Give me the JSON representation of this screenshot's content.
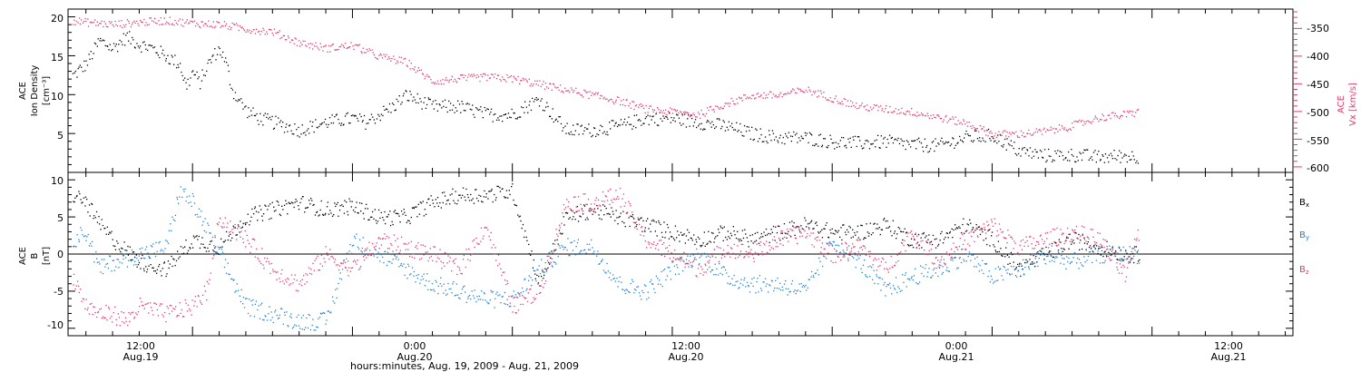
{
  "colors": {
    "black": "#000000",
    "pink": "#e8386b",
    "blue": "#1f7fd8"
  },
  "chart_data": [
    {
      "type": "scatter",
      "panel": "top",
      "ylabel_left": [
        "ACE",
        "Ion Density",
        "[cm⁻³]"
      ],
      "ylabel_right": [
        "ACE",
        "Vx [km/s]"
      ],
      "ylim_left": [
        0,
        21
      ],
      "ylim_right": [
        -610,
        -315
      ],
      "yticks_left": [
        "20",
        "15",
        "10",
        "5"
      ],
      "yticks_right": [
        "-350",
        "-400",
        "-450",
        "-500",
        "-550",
        "-600"
      ],
      "series": [
        {
          "color": "black",
          "axis": "left",
          "t": [
            3,
            4,
            5,
            6,
            7,
            8,
            9,
            10,
            11,
            11.5,
            12,
            12.5,
            13,
            13.5,
            14,
            14.5,
            15,
            16,
            17,
            18,
            20,
            22,
            24,
            25,
            26,
            27,
            28,
            30,
            32,
            34,
            36,
            38,
            40,
            42,
            44,
            46,
            48,
            50,
            52,
            54,
            56,
            58,
            60,
            62,
            64,
            66,
            68,
            70,
            72,
            74,
            76,
            78,
            80,
            82,
            83
          ],
          "y": [
            12.5,
            14,
            17,
            16,
            17.5,
            16.5,
            16,
            15,
            14,
            11,
            13,
            11.5,
            13.5,
            15,
            16,
            14,
            10.5,
            8,
            7,
            6.5,
            5.5,
            6.5,
            7,
            6.5,
            7.5,
            8.5,
            10,
            8.5,
            8.5,
            7.5,
            7.5,
            9.5,
            5.5,
            5.5,
            6,
            7,
            7,
            6.5,
            6,
            5,
            4.5,
            4.5,
            4,
            3.8,
            4,
            3.6,
            3.5,
            4.5,
            4.8,
            2.8,
            2.2,
            2.3,
            2,
            2.2,
            2
          ],
          "values": [
            12.5,
            14,
            17,
            16,
            17.5,
            16.5,
            16,
            15,
            14,
            11,
            13,
            11.5,
            13.5,
            15,
            16,
            14,
            10.5,
            8,
            7,
            6.5,
            5.5,
            6.5,
            7,
            6.5,
            7.5,
            8.5,
            10,
            8.5,
            8.5,
            7.5,
            7.5,
            9.5,
            5.5,
            5.5,
            6,
            7,
            7,
            6.5,
            6,
            5,
            4.5,
            4.5,
            4,
            3.8,
            4,
            3.6,
            3.5,
            4.5,
            4.8,
            2.8,
            2.2,
            2.3,
            2,
            2.2,
            2
          ]
        },
        {
          "color": "pink",
          "axis": "right",
          "t": [
            3,
            4,
            5,
            6,
            8,
            10,
            12,
            14,
            16,
            18,
            20,
            22,
            24,
            26,
            28,
            30,
            32,
            34,
            36,
            38,
            40,
            42,
            44,
            46,
            48,
            50,
            52,
            54,
            56,
            58,
            60,
            62,
            64,
            66,
            68,
            70,
            72,
            74,
            76,
            78,
            80,
            82,
            83
          ],
          "y": [
            -335,
            -338,
            -340,
            -342,
            -338,
            -335,
            -340,
            -342,
            -350,
            -355,
            -375,
            -385,
            -380,
            -400,
            -410,
            -445,
            -440,
            -437,
            -440,
            -450,
            -460,
            -470,
            -480,
            -495,
            -500,
            -505,
            -485,
            -470,
            -470,
            -460,
            -475,
            -490,
            -495,
            -500,
            -510,
            -520,
            -540,
            -540,
            -535,
            -525,
            -510,
            -505,
            -500
          ],
          "values": [
            -335,
            -338,
            -340,
            -342,
            -338,
            -335,
            -340,
            -342,
            -350,
            -355,
            -375,
            -385,
            -380,
            -400,
            -410,
            -445,
            -440,
            -437,
            -440,
            -450,
            -460,
            -470,
            -480,
            -495,
            -500,
            -505,
            -485,
            -470,
            -470,
            -460,
            -475,
            -490,
            -495,
            -500,
            -510,
            -520,
            -540,
            -540,
            -535,
            -525,
            -510,
            -505,
            -500
          ]
        }
      ]
    },
    {
      "type": "scatter",
      "panel": "bottom",
      "ylabel": [
        "ACE",
        "B",
        "[nT]"
      ],
      "ylim": [
        -11,
        11
      ],
      "yticks": [
        "10",
        "5",
        "0",
        "-5",
        "-10"
      ],
      "legend": [
        "Bx",
        "By",
        "Bz"
      ],
      "series": [
        {
          "name": "Bx",
          "color": "black",
          "t": [
            3,
            4,
            5,
            6,
            8,
            10,
            12,
            14,
            16,
            18,
            20,
            22,
            24,
            26,
            28,
            30,
            32,
            34,
            36,
            38,
            40,
            42,
            44,
            46,
            48,
            50,
            52,
            54,
            56,
            58,
            60,
            62,
            64,
            66,
            68,
            70,
            72,
            74,
            76,
            78,
            80,
            82,
            83
          ],
          "y": [
            8,
            7,
            4,
            2,
            -1,
            -2,
            2,
            1,
            5,
            6,
            7,
            6,
            6.5,
            5,
            5,
            7,
            8,
            8,
            8.5,
            -4,
            5,
            6,
            5,
            4,
            3,
            2,
            3,
            2,
            3,
            4,
            3,
            3,
            4,
            2,
            2,
            4,
            2,
            -2,
            0,
            2,
            1,
            0,
            0
          ],
          "values": [
            8,
            7,
            4,
            2,
            -1,
            -2,
            2,
            1,
            5,
            6,
            7,
            6,
            6.5,
            5,
            5,
            7,
            8,
            8,
            8.5,
            -4,
            5,
            6,
            5,
            4,
            3,
            2,
            3,
            2,
            3,
            4,
            3,
            3,
            4,
            2,
            2,
            4,
            2,
            -2,
            0,
            2,
            1,
            0,
            0
          ]
        },
        {
          "name": "By",
          "color": "blue",
          "t": [
            3,
            4,
            5,
            6,
            8,
            10,
            11,
            12,
            14,
            16,
            18,
            20,
            22,
            24,
            26,
            28,
            30,
            32,
            34,
            36,
            38,
            40,
            42,
            44,
            46,
            48,
            50,
            52,
            54,
            56,
            58,
            60,
            62,
            64,
            66,
            68,
            70,
            72,
            74,
            76,
            78,
            80,
            82,
            83
          ],
          "y": [
            2,
            3,
            -2,
            -1,
            0,
            1,
            8.5,
            7,
            0,
            -7,
            -8,
            -9,
            -9,
            2,
            0,
            -2,
            -4,
            -5,
            -6,
            -6,
            -2,
            1,
            1,
            -4,
            -5,
            -2,
            0,
            -3,
            -4,
            -4,
            -5,
            2,
            -1,
            -5,
            -3,
            -2,
            0,
            -3,
            -2,
            0,
            -1,
            0,
            0,
            0
          ],
          "values": [
            2,
            3,
            -2,
            -1,
            0,
            1,
            8.5,
            7,
            0,
            -7,
            -8,
            -9,
            -9,
            2,
            0,
            -2,
            -4,
            -5,
            -6,
            -6,
            -2,
            1,
            1,
            -4,
            -5,
            -2,
            0,
            -3,
            -4,
            -4,
            -5,
            2,
            -1,
            -5,
            -3,
            -2,
            0,
            -3,
            -2,
            0,
            -1,
            0,
            0,
            0
          ]
        },
        {
          "name": "Bz",
          "color": "pink",
          "t": [
            3,
            4,
            5,
            6,
            7,
            8,
            10,
            12,
            13,
            14,
            16,
            18,
            20,
            22,
            24,
            26,
            28,
            30,
            32,
            34,
            36,
            38,
            40,
            42,
            44,
            46,
            48,
            50,
            52,
            54,
            56,
            58,
            60,
            62,
            64,
            66,
            68,
            70,
            72,
            74,
            76,
            78,
            80,
            82,
            83
          ],
          "y": [
            -3,
            -7,
            -8,
            -8,
            -9,
            -7,
            -8,
            -7,
            -5,
            5,
            2,
            -2,
            -4,
            0,
            -2,
            2,
            1,
            0,
            -2,
            4,
            -7,
            -5,
            7,
            7,
            8,
            2,
            0,
            -2,
            1,
            0,
            2,
            3,
            0,
            1,
            -2,
            3,
            -1,
            2,
            4,
            1,
            2,
            3,
            2,
            -3,
            3
          ],
          "values": [
            -3,
            -7,
            -8,
            -8,
            -9,
            -7,
            -8,
            -7,
            -5,
            5,
            2,
            -2,
            -4,
            0,
            -2,
            2,
            1,
            0,
            -2,
            4,
            -7,
            -5,
            7,
            7,
            8,
            2,
            0,
            -2,
            1,
            0,
            2,
            3,
            0,
            1,
            -2,
            3,
            -1,
            2,
            4,
            1,
            2,
            3,
            2,
            -3,
            3
          ]
        }
      ]
    }
  ],
  "x_axis": {
    "ticks": [
      {
        "time": "12:00",
        "date": "Aug.19"
      },
      {
        "time": "0:00",
        "date": "Aug.20"
      },
      {
        "time": "12:00",
        "date": "Aug.20"
      },
      {
        "time": "0:00",
        "date": "Aug.21"
      },
      {
        "time": "12:00",
        "date": "Aug.21"
      }
    ],
    "xlabel": "hours:minutes, Aug. 19, 2009 - Aug. 21, 2009"
  }
}
